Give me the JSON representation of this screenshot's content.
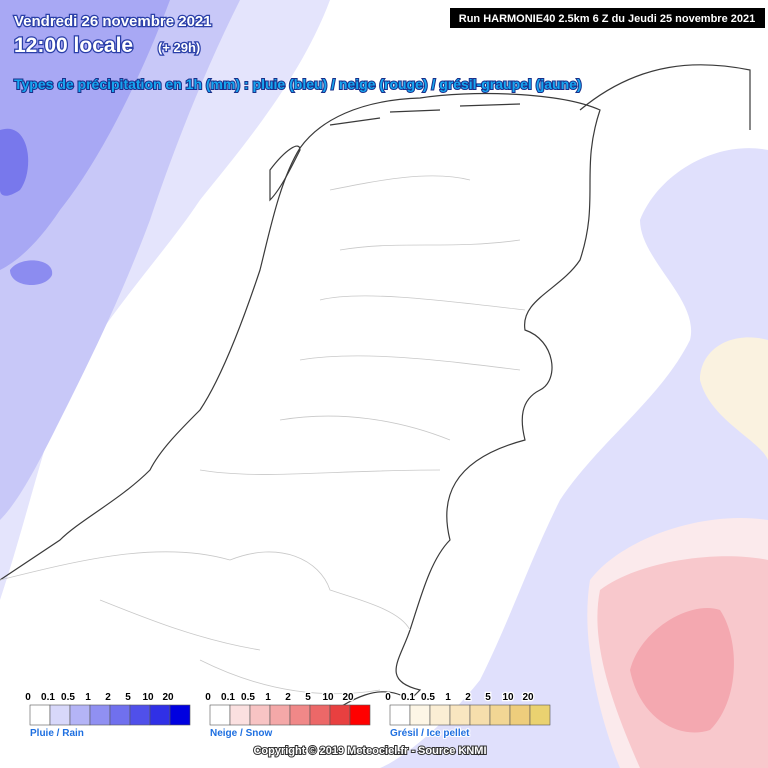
{
  "header": {
    "date": "Vendredi 26 novembre 2021",
    "time": "12:00 locale",
    "lead": "(+ 29h)",
    "types": "Types de précipitation en 1h (mm) : pluie (bleu) / neige (rouge) / grésil-graupel (jaune)",
    "run": "Run HARMONIE40 2.5km 6 Z du Jeudi 25 novembre 2021"
  },
  "legends": [
    {
      "label": "Pluie / Rain",
      "ticks": [
        0,
        0.1,
        0.5,
        1,
        2,
        5,
        10,
        20
      ],
      "colors": [
        "#ffffff",
        "#d8d8fa",
        "#b4b4f6",
        "#9090f2",
        "#7070ee",
        "#5050ea",
        "#3030e6",
        "#0000e0"
      ]
    },
    {
      "label": "Neige / Snow",
      "ticks": [
        0,
        0.1,
        0.5,
        1,
        2,
        5,
        10,
        20
      ],
      "colors": [
        "#ffffff",
        "#fbe0e0",
        "#f8c4c4",
        "#f4a8a8",
        "#f08888",
        "#ec6868",
        "#e84040",
        "#ff0000"
      ]
    },
    {
      "label": "Grésil / Ice pellet",
      "ticks": [
        0,
        0.1,
        0.5,
        1,
        2,
        5,
        10,
        20
      ],
      "colors": [
        "#ffffff",
        "#fdf6e6",
        "#fbeed4",
        "#f9e6c0",
        "#f6deac",
        "#f2d694",
        "#eecd7c",
        "#ead270"
      ]
    }
  ],
  "footer": "Copyright © 2019 Meteociel.fr - Source KNMI"
}
